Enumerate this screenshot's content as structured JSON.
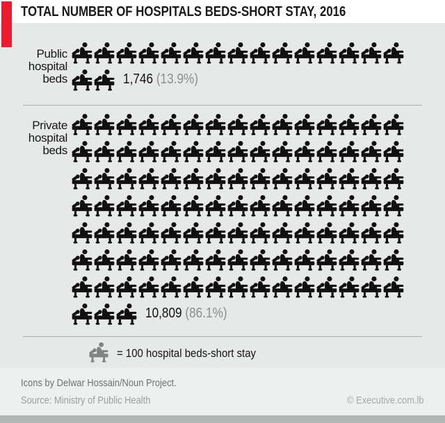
{
  "title": "TOTAL NUMBER OF HOSPITALS BEDS-SHORT STAY, 2016",
  "chart_data": {
    "type": "pictogram",
    "title": "TOTAL NUMBER OF HOSPITALS BEDS-SHORT STAY, 2016",
    "unit_per_icon": 100,
    "icon_name": "hospital-bed-icon",
    "icons_per_row": 15,
    "categories": [
      "Public hospital beds",
      "Private hospital beds"
    ],
    "values": [
      1746,
      10809
    ],
    "percents": [
      13.9,
      86.1
    ],
    "series": [
      {
        "label": "Public hospital beds",
        "label_lines": [
          "Public",
          "hospital",
          "beds"
        ],
        "value": 1746,
        "value_display": "1,746",
        "percent_display": "(13.9%)",
        "icon_count": 17
      },
      {
        "label": "Private hospital beds",
        "label_lines": [
          "Private",
          "hospital",
          "beds"
        ],
        "value": 10809,
        "value_display": "10,809",
        "percent_display": "(86.1%)",
        "icon_count": 108
      }
    ],
    "legend": {
      "icon_name": "hospital-bed-icon",
      "label": "= 100 hospital beds-short stay"
    }
  },
  "footer": {
    "credit": "Icons by Delwar Hossain/Noun Project.",
    "source": "Source: Ministry of Public Health",
    "copyright": "© Executive.com.lb"
  },
  "colors": {
    "accent_red": "#ec1c2e",
    "panel_bg": "#e6e9e7",
    "icon_black": "#101010",
    "percent_gray": "#8b908e",
    "legend_icon_gray": "#7f8483",
    "divider_gray": "#a9aeac",
    "footer_bg": "#eef0ef",
    "bottom_bar_gray": "#b1b7b5"
  }
}
